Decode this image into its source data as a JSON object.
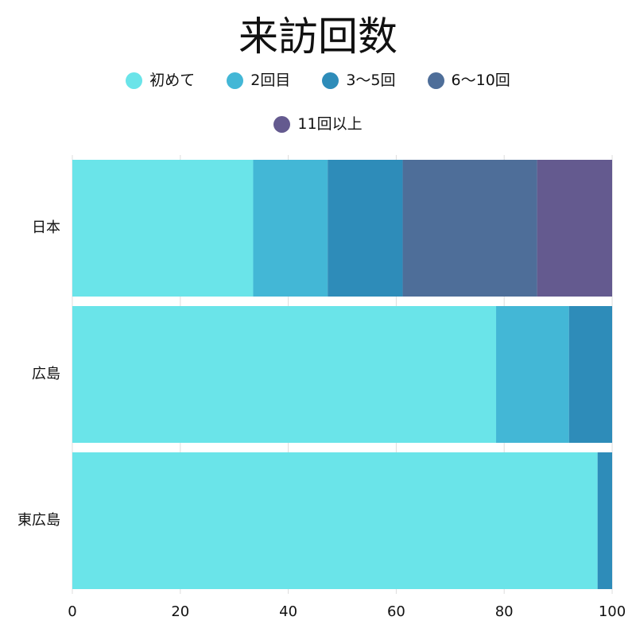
{
  "chart_data": {
    "type": "bar",
    "orientation": "horizontal",
    "stacked": true,
    "title": "来訪回数",
    "categories": [
      "日本",
      "広島",
      "東広島"
    ],
    "series": [
      {
        "name": "初めて",
        "color": "#6ae4e9",
        "values": [
          33.5,
          78.5,
          97.3
        ]
      },
      {
        "name": "2回目",
        "color": "#43b7d6",
        "values": [
          13.8,
          13.5,
          0
        ]
      },
      {
        "name": "3〜5回",
        "color": "#2e8cb9",
        "values": [
          13.9,
          8.0,
          2.7
        ]
      },
      {
        "name": "6〜10回",
        "color": "#4e6e99",
        "values": [
          24.9,
          0,
          0
        ]
      },
      {
        "name": "11回以上",
        "color": "#645a8f",
        "values": [
          13.9,
          0,
          0
        ]
      }
    ],
    "xlim": [
      0,
      100
    ],
    "xticks": [
      0,
      20,
      40,
      60,
      80,
      100
    ],
    "grid": true,
    "legend_position": "top"
  }
}
